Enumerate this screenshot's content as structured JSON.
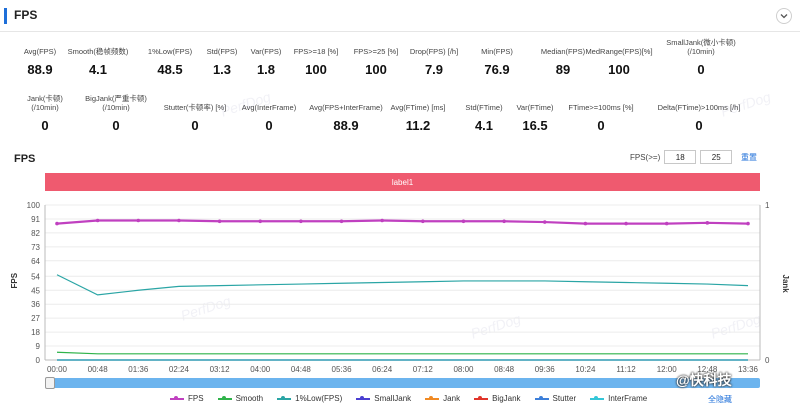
{
  "panel": {
    "title": "FPS"
  },
  "stats_row1": [
    {
      "label": "Avg(FPS)",
      "value": "88.9"
    },
    {
      "label": "Smooth(稳帧频数)",
      "value": "4.1"
    },
    {
      "label": "1%Low(FPS)",
      "value": "48.5"
    },
    {
      "label": "Std(FPS)",
      "value": "1.3"
    },
    {
      "label": "Var(FPS)",
      "value": "1.8"
    },
    {
      "label": "FPS>=18 [%]",
      "value": "100"
    },
    {
      "label": "FPS>=25 [%]",
      "value": "100"
    },
    {
      "label": "Drop(FPS) [/h]",
      "value": "7.9"
    },
    {
      "label": "Min(FPS)",
      "value": "76.9"
    },
    {
      "label": "Median(FPS)",
      "value": "89"
    },
    {
      "label": "MedRange(FPS)[%]",
      "value": "100"
    },
    {
      "label": "SmallJank(微小卡顿)\n(/10min)",
      "value": "0"
    }
  ],
  "stats_row2": [
    {
      "label": "Jank(卡顿)\n(/10min)",
      "value": "0"
    },
    {
      "label": "BigJank(严重卡顿)\n(/10min)",
      "value": "0"
    },
    {
      "label": "Stutter(卡顿率) [%]",
      "value": "0"
    },
    {
      "label": "Avg(InterFrame)",
      "value": "0"
    },
    {
      "label": "Avg(FPS+InterFrame)",
      "value": "88.9"
    },
    {
      "label": "Avg(FTime) [ms]",
      "value": "11.2"
    },
    {
      "label": "Std(FTime)",
      "value": "4.1"
    },
    {
      "label": "Var(FTime)",
      "value": "16.5"
    },
    {
      "label": "FTime>=100ms [%]",
      "value": "0"
    },
    {
      "label": "Delta(FTime)>100ms [/h]",
      "value": "0"
    }
  ],
  "chart_header": {
    "title": "FPS",
    "threshold_label": "FPS(>=)",
    "threshold_1": "18",
    "threshold_2": "25",
    "reset": "重置"
  },
  "label_bar": "label1",
  "hide_all": "全隐藏",
  "watermark": "PerfDog",
  "corner_mark": "@快科技",
  "colors": {
    "fps": "#c040c0",
    "smooth": "#2fb34a",
    "low1": "#2aa5a5",
    "smalljank": "#4a3fd1",
    "jank": "#f08a24",
    "bigjank": "#e0352b",
    "stutter": "#3d7fd9",
    "interframe": "#34c6d8",
    "label_bar": "#ef5a6f",
    "accent": "#1e6fd9"
  },
  "chart_data": {
    "type": "line",
    "x": [
      "00:00",
      "00:48",
      "01:36",
      "02:24",
      "03:12",
      "04:00",
      "04:48",
      "05:36",
      "06:24",
      "07:12",
      "08:00",
      "08:48",
      "09:36",
      "10:24",
      "11:12",
      "12:00",
      "12:48",
      "13:36"
    ],
    "ylabel": "FPS",
    "y2label": "Jank",
    "ylim": [
      0,
      100
    ],
    "y2lim": [
      0,
      1
    ],
    "yticks": [
      0,
      9,
      18,
      27,
      36,
      45,
      54,
      64,
      73,
      82,
      91,
      100
    ],
    "y2ticks": [
      0,
      1
    ],
    "series": [
      {
        "name": "FPS",
        "values": [
          88,
          90,
          90,
          90,
          89.5,
          89.5,
          89.5,
          89.5,
          90,
          89.5,
          89.5,
          89.5,
          89,
          88,
          88,
          88,
          88.5,
          88
        ]
      },
      {
        "name": "Smooth",
        "values": [
          5,
          4,
          4,
          4,
          4,
          4,
          4,
          4,
          4,
          4,
          4,
          4,
          4,
          4,
          4,
          4,
          4,
          4
        ]
      },
      {
        "name": "1%Low(FPS)",
        "values": [
          55,
          42,
          45,
          47.5,
          48,
          48.5,
          49,
          49.5,
          50,
          50.5,
          51,
          51,
          51,
          50.5,
          50,
          49.5,
          49,
          48
        ]
      },
      {
        "name": "SmallJank",
        "values": [
          0,
          0,
          0,
          0,
          0,
          0,
          0,
          0,
          0,
          0,
          0,
          0,
          0,
          0,
          0,
          0,
          0,
          0
        ]
      },
      {
        "name": "Jank",
        "values": [
          0,
          0,
          0,
          0,
          0,
          0,
          0,
          0,
          0,
          0,
          0,
          0,
          0,
          0,
          0,
          0,
          0,
          0
        ]
      },
      {
        "name": "BigJank",
        "values": [
          0,
          0,
          0,
          0,
          0,
          0,
          0,
          0,
          0,
          0,
          0,
          0,
          0,
          0,
          0,
          0,
          0,
          0
        ]
      },
      {
        "name": "Stutter",
        "values": [
          0,
          0,
          0,
          0,
          0,
          0,
          0,
          0,
          0,
          0,
          0,
          0,
          0,
          0,
          0,
          0,
          0,
          0
        ]
      },
      {
        "name": "InterFrame",
        "values": [
          0,
          0,
          0,
          0,
          0,
          0,
          0,
          0,
          0,
          0,
          0,
          0,
          0,
          0,
          0,
          0,
          0,
          0
        ]
      }
    ],
    "legend_position": "bottom",
    "grid": true
  }
}
